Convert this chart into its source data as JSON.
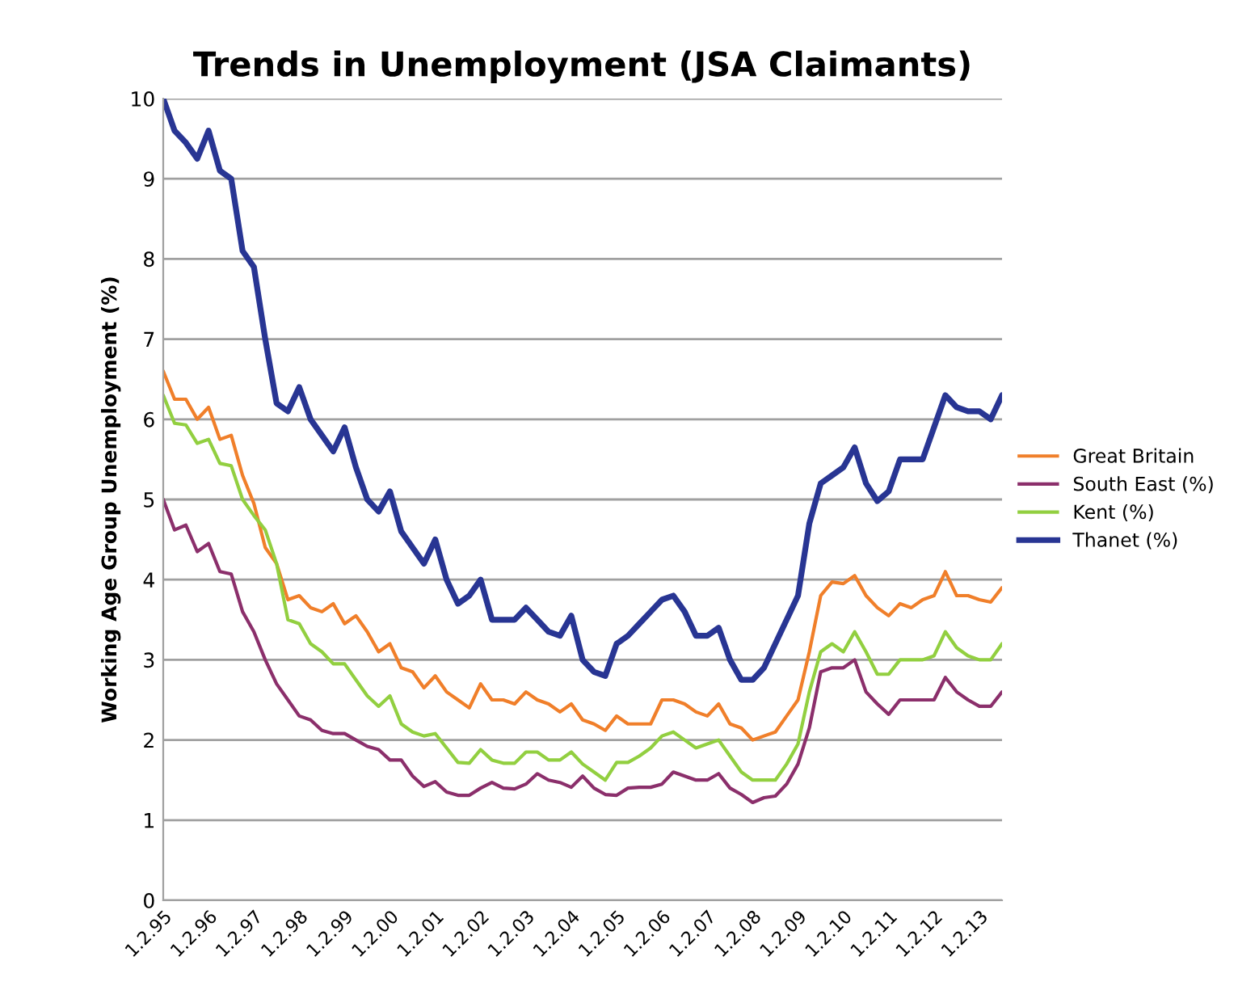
{
  "chart_data": {
    "type": "line",
    "title": "Trends in Unemployment (JSA Claimants)",
    "ylabel": "Working Age Group Unemployment (%)",
    "categories": [
      "1.2.95",
      null,
      null,
      null,
      "1.2.96",
      null,
      null,
      null,
      "1.2.97",
      null,
      null,
      null,
      "1.2.98",
      null,
      null,
      null,
      "1.2.99",
      null,
      null,
      null,
      "1.2.00",
      null,
      null,
      null,
      "1.2.01",
      null,
      null,
      null,
      "1.2.02",
      null,
      null,
      null,
      "1.2.03",
      null,
      null,
      null,
      "1.2.04",
      null,
      null,
      null,
      "1.2.05",
      null,
      null,
      null,
      "1.2.06",
      null,
      null,
      null,
      "1.2.07",
      null,
      null,
      null,
      "1.2.08",
      null,
      null,
      null,
      "1.2.09",
      null,
      null,
      null,
      "1.2.10",
      null,
      null,
      null,
      "1.2.11",
      null,
      null,
      null,
      "1.2.12",
      null,
      null,
      null,
      "1.2.13",
      null,
      null
    ],
    "ylim": [
      0,
      10
    ],
    "yticks": [
      0,
      1,
      2,
      3,
      4,
      5,
      6,
      7,
      8,
      9,
      10
    ],
    "grid": "y",
    "legend": "right",
    "marker": "none",
    "line_style": "solid",
    "series": [
      {
        "name": "Great Britain",
        "color": "#f07f2a",
        "values": [
          6.6,
          6.25,
          6.25,
          6.0,
          6.15,
          5.75,
          5.8,
          5.3,
          4.95,
          4.4,
          4.2,
          3.75,
          3.8,
          3.65,
          3.6,
          3.7,
          3.45,
          3.55,
          3.35,
          3.1,
          3.2,
          2.9,
          2.85,
          2.65,
          2.8,
          2.6,
          2.5,
          2.4,
          2.7,
          2.5,
          2.5,
          2.45,
          2.6,
          2.5,
          2.45,
          2.35,
          2.45,
          2.25,
          2.2,
          2.12,
          2.3,
          2.2,
          2.2,
          2.2,
          2.5,
          2.5,
          2.45,
          2.35,
          2.3,
          2.45,
          2.2,
          2.15,
          2.0,
          2.05,
          2.1,
          2.3,
          2.5,
          3.1,
          3.8,
          3.97,
          3.95,
          4.05,
          3.8,
          3.65,
          3.55,
          3.7,
          3.65,
          3.75,
          3.8,
          4.1,
          3.8,
          3.8,
          3.75,
          3.72,
          3.9
        ]
      },
      {
        "name": "South East (%)",
        "color": "#8b2f6b",
        "values": [
          5.0,
          4.62,
          4.68,
          4.35,
          4.45,
          4.1,
          4.07,
          3.6,
          3.35,
          3.0,
          2.7,
          2.5,
          2.3,
          2.25,
          2.12,
          2.08,
          2.08,
          2.0,
          1.92,
          1.88,
          1.75,
          1.75,
          1.55,
          1.42,
          1.48,
          1.35,
          1.31,
          1.31,
          1.4,
          1.47,
          1.4,
          1.39,
          1.45,
          1.58,
          1.5,
          1.47,
          1.41,
          1.55,
          1.4,
          1.32,
          1.31,
          1.4,
          1.41,
          1.41,
          1.45,
          1.6,
          1.55,
          1.5,
          1.5,
          1.58,
          1.4,
          1.32,
          1.22,
          1.28,
          1.3,
          1.45,
          1.7,
          2.15,
          2.85,
          2.9,
          2.9,
          3.0,
          2.6,
          2.45,
          2.32,
          2.5,
          2.5,
          2.5,
          2.5,
          2.78,
          2.6,
          2.5,
          2.42,
          2.42,
          2.6
        ]
      },
      {
        "name": "Kent (%)",
        "color": "#92cf40",
        "values": [
          6.3,
          5.95,
          5.93,
          5.7,
          5.75,
          5.45,
          5.42,
          5.0,
          4.8,
          4.62,
          4.2,
          3.5,
          3.45,
          3.2,
          3.1,
          2.95,
          2.95,
          2.75,
          2.55,
          2.42,
          2.55,
          2.2,
          2.1,
          2.05,
          2.08,
          1.9,
          1.72,
          1.71,
          1.88,
          1.75,
          1.71,
          1.71,
          1.85,
          1.85,
          1.75,
          1.75,
          1.85,
          1.7,
          1.6,
          1.5,
          1.72,
          1.72,
          1.8,
          1.9,
          2.05,
          2.1,
          2.0,
          1.9,
          1.95,
          2.0,
          1.8,
          1.6,
          1.5,
          1.5,
          1.5,
          1.7,
          1.95,
          2.6,
          3.1,
          3.2,
          3.1,
          3.35,
          3.1,
          2.82,
          2.82,
          3.0,
          3.0,
          3.0,
          3.05,
          3.35,
          3.15,
          3.05,
          3.0,
          3.0,
          3.2
        ]
      },
      {
        "name": "Thanet (%)",
        "color": "#283593",
        "values": [
          10.0,
          9.6,
          9.45,
          9.25,
          9.6,
          9.1,
          9.0,
          8.1,
          7.9,
          7.0,
          6.2,
          6.1,
          6.4,
          6.0,
          5.8,
          5.6,
          5.9,
          5.4,
          5.0,
          4.85,
          5.1,
          4.6,
          4.4,
          4.2,
          4.5,
          4.0,
          3.7,
          3.8,
          4.0,
          3.5,
          3.5,
          3.5,
          3.65,
          3.5,
          3.35,
          3.3,
          3.55,
          3.0,
          2.85,
          2.8,
          3.2,
          3.3,
          3.45,
          3.6,
          3.75,
          3.8,
          3.6,
          3.3,
          3.3,
          3.4,
          3.0,
          2.75,
          2.75,
          2.9,
          3.2,
          3.5,
          3.8,
          4.7,
          5.2,
          5.3,
          5.4,
          5.65,
          5.2,
          4.98,
          5.1,
          5.5,
          5.5,
          5.5,
          5.9,
          6.3,
          6.15,
          6.1,
          6.1,
          6.0,
          6.3
        ]
      }
    ]
  }
}
